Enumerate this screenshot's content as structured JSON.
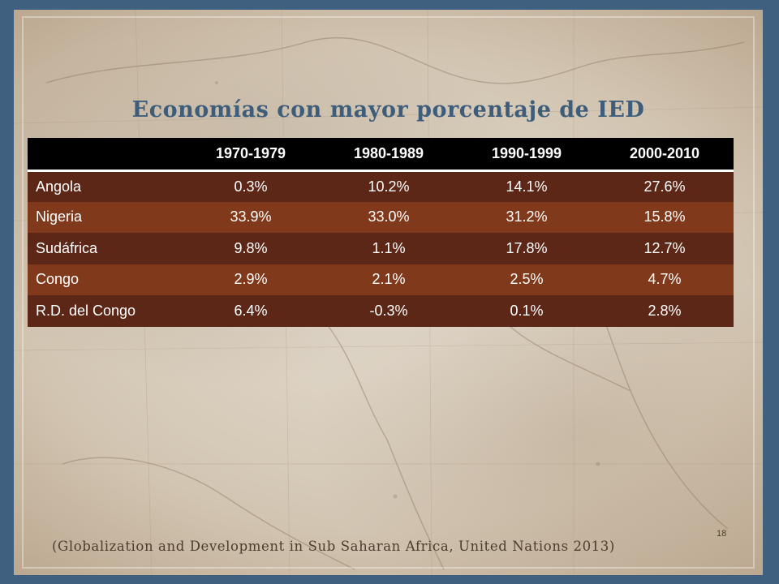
{
  "slide": {
    "title": "Economías con mayor porcentaje de IED",
    "source": "(Globalization and Development in Sub Saharan Africa, United Nations 2013)",
    "page_number": "18"
  },
  "table": {
    "columns": [
      "",
      "1970-1979",
      "1980-1989",
      "1990-1999",
      "2000-2010"
    ],
    "rows": [
      {
        "country": "Angola",
        "values": [
          "0.3%",
          "10.2%",
          "14.1%",
          "27.6%"
        ]
      },
      {
        "country": "Nigeria",
        "values": [
          "33.9%",
          "33.0%",
          "31.2%",
          "15.8%"
        ]
      },
      {
        "country": "Sudáfrica",
        "values": [
          "9.8%",
          "1.1%",
          "17.8%",
          "12.7%"
        ]
      },
      {
        "country": "Congo",
        "values": [
          "2.9%",
          "2.1%",
          "2.5%",
          "4.7%"
        ]
      },
      {
        "country": "R.D. del Congo",
        "values": [
          "6.4%",
          "-0.3%",
          "0.1%",
          "2.8%"
        ]
      }
    ]
  },
  "colors": {
    "frame": "#3f617f",
    "title": "#3e5d7b",
    "header_bg": "#000000",
    "row_dark": "#5c2716",
    "row_light": "#80391b"
  }
}
